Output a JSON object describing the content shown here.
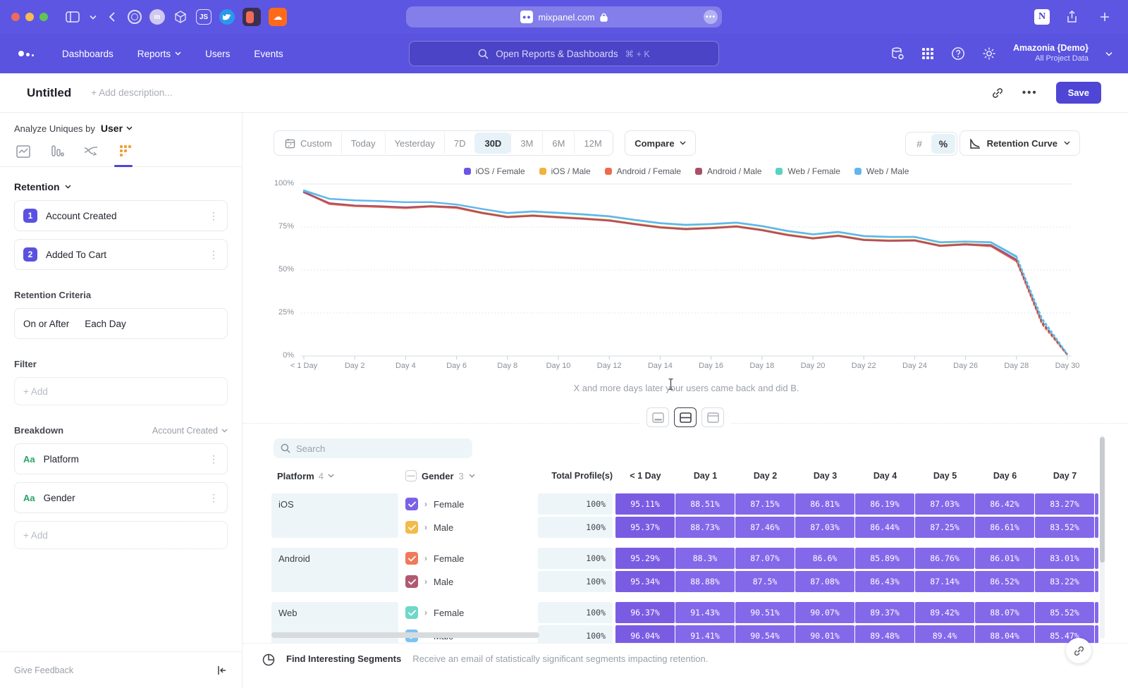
{
  "browser": {
    "url": "mixpanel.com"
  },
  "nav": {
    "items": [
      "Dashboards",
      "Reports",
      "Users",
      "Events"
    ],
    "search_placeholder": "Open Reports & Dashboards",
    "search_shortcut": "⌘ + K",
    "account_name": "Amazonia {Demo}",
    "account_scope": "All Project Data"
  },
  "header": {
    "title": "Untitled",
    "description_placeholder": "+ Add description...",
    "save_label": "Save"
  },
  "sidebar": {
    "analyze_label": "Analyze Uniques by",
    "analyze_value": "User",
    "section_retention": "Retention",
    "steps": [
      {
        "num": "1",
        "label": "Account Created"
      },
      {
        "num": "2",
        "label": "Added To Cart"
      }
    ],
    "criteria_label": "Retention Criteria",
    "criteria_value_1": "On or After",
    "criteria_value_2": "Each Day",
    "filter_label": "Filter",
    "add_label": "+ Add",
    "breakdown_label": "Breakdown",
    "breakdown_scope": "Account Created",
    "breakdowns": [
      {
        "type": "Aa",
        "label": "Platform"
      },
      {
        "type": "Aa",
        "label": "Gender"
      }
    ],
    "give_feedback": "Give Feedback"
  },
  "toolbar": {
    "ranges": [
      "Custom",
      "Today",
      "Yesterday",
      "7D",
      "30D",
      "3M",
      "6M",
      "12M"
    ],
    "active_range": "30D",
    "compare_label": "Compare",
    "unit_toggle": [
      "#",
      "%"
    ],
    "active_unit": "%",
    "chart_type": "Retention Curve"
  },
  "chart_data": {
    "type": "line",
    "x_labels": [
      "< 1 Day",
      "Day 2",
      "Day 4",
      "Day 6",
      "Day 8",
      "Day 10",
      "Day 12",
      "Day 14",
      "Day 16",
      "Day 18",
      "Day 20",
      "Day 22",
      "Day 24",
      "Day 26",
      "Day 28",
      "Day 30"
    ],
    "x_range": [
      0,
      30
    ],
    "ylim": [
      0,
      100
    ],
    "y_ticks": [
      "100%",
      "75%",
      "50%",
      "25%",
      "0%"
    ],
    "caption": "X and more days later your users came back and did B.",
    "dashed_from_day": 28,
    "legend_position": "top",
    "series": [
      {
        "name": "iOS / Female",
        "color": "#6c55e6",
        "values": [
          95.1,
          88.5,
          87.2,
          86.8,
          86.2,
          87.0,
          86.4,
          83.3,
          80.9,
          81.7,
          80.8,
          79.9,
          78.9,
          76.8,
          74.9,
          73.9,
          74.5,
          75.4,
          73.3,
          70.5,
          68.5,
          70.0,
          67.6,
          67.1,
          67.3,
          64.2,
          65.0,
          64.6,
          56.0,
          20.0,
          0.8
        ]
      },
      {
        "name": "iOS / Male",
        "color": "#f2b23e",
        "values": [
          95.4,
          88.7,
          87.5,
          87.0,
          86.4,
          87.3,
          86.6,
          83.5,
          81.1,
          81.9,
          81.0,
          80.1,
          79.1,
          77.0,
          75.1,
          74.1,
          74.7,
          75.6,
          73.5,
          70.7,
          68.7,
          70.2,
          67.8,
          67.3,
          67.5,
          64.4,
          65.2,
          64.4,
          55.5,
          19.0,
          0.6
        ]
      },
      {
        "name": "Android / Female",
        "color": "#ef6a4c",
        "values": [
          95.3,
          88.3,
          87.1,
          86.6,
          85.9,
          86.8,
          86.0,
          83.0,
          80.6,
          81.4,
          80.5,
          79.6,
          78.6,
          76.5,
          74.6,
          73.6,
          74.2,
          75.1,
          73.0,
          70.2,
          68.2,
          69.7,
          67.3,
          66.8,
          67.0,
          63.9,
          64.7,
          63.8,
          55.0,
          18.5,
          0.5
        ]
      },
      {
        "name": "Android / Male",
        "color": "#a94f68",
        "values": [
          95.3,
          88.9,
          87.5,
          87.1,
          86.4,
          87.1,
          86.5,
          83.2,
          80.8,
          81.6,
          80.7,
          79.8,
          78.8,
          76.7,
          74.8,
          73.8,
          74.4,
          75.3,
          73.2,
          70.4,
          68.4,
          69.9,
          67.5,
          67.0,
          67.2,
          64.1,
          64.9,
          64.2,
          55.8,
          19.5,
          0.7
        ]
      },
      {
        "name": "Web / Female",
        "color": "#58d2c3",
        "values": [
          96.4,
          91.4,
          90.5,
          90.1,
          89.4,
          89.4,
          88.1,
          85.5,
          83.0,
          83.9,
          83.1,
          82.2,
          81.1,
          79.0,
          77.1,
          76.1,
          76.6,
          77.4,
          75.4,
          72.6,
          70.6,
          72.0,
          69.6,
          69.1,
          69.1,
          66.0,
          66.4,
          66.0,
          57.5,
          21.0,
          1.0
        ]
      },
      {
        "name": "Web / Male",
        "color": "#63b5ef",
        "values": [
          96.0,
          91.4,
          90.5,
          90.0,
          89.4,
          89.5,
          88.0,
          85.5,
          83.2,
          84.1,
          83.3,
          82.4,
          81.3,
          79.2,
          77.3,
          76.3,
          76.8,
          77.6,
          75.6,
          72.8,
          70.8,
          72.2,
          69.8,
          69.3,
          69.3,
          66.2,
          66.6,
          66.2,
          58.0,
          22.0,
          1.2
        ]
      }
    ]
  },
  "table": {
    "search_placeholder": "Search",
    "columns": {
      "platform_label": "Platform",
      "platform_count": "4",
      "gender_label": "Gender",
      "gender_count": "3",
      "total_label": "Total Profile(s)",
      "day_headers": [
        "< 1 Day",
        "Day 1",
        "Day 2",
        "Day 3",
        "Day 4",
        "Day 5",
        "Day 6",
        "Day 7"
      ]
    },
    "groups": [
      {
        "platform": "iOS",
        "rows": [
          {
            "gender": "Female",
            "checkbox_color": "#7b61e8",
            "total": "100%",
            "values": [
              "95.11%",
              "88.51%",
              "87.15%",
              "86.81%",
              "86.19%",
              "87.03%",
              "86.42%",
              "83.27%"
            ]
          },
          {
            "gender": "Male",
            "checkbox_color": "#f3bb4a",
            "total": "100%",
            "values": [
              "95.37%",
              "88.73%",
              "87.46%",
              "87.03%",
              "86.44%",
              "87.25%",
              "86.61%",
              "83.52%"
            ]
          }
        ]
      },
      {
        "platform": "Android",
        "rows": [
          {
            "gender": "Female",
            "checkbox_color": "#f0795a",
            "total": "100%",
            "values": [
              "95.29%",
              "88.3%",
              "87.07%",
              "86.6%",
              "85.89%",
              "86.76%",
              "86.01%",
              "83.01%"
            ]
          },
          {
            "gender": "Male",
            "checkbox_color": "#b05a72",
            "total": "100%",
            "values": [
              "95.34%",
              "88.88%",
              "87.5%",
              "87.08%",
              "86.43%",
              "87.14%",
              "86.52%",
              "83.22%"
            ]
          }
        ]
      },
      {
        "platform": "Web",
        "rows": [
          {
            "gender": "Female",
            "checkbox_color": "#6fd8c8",
            "total": "100%",
            "values": [
              "96.37%",
              "91.43%",
              "90.51%",
              "90.07%",
              "89.37%",
              "89.42%",
              "88.07%",
              "85.52%"
            ]
          },
          {
            "gender": "Male",
            "checkbox_color": "#7cc3f2",
            "total": "100%",
            "values": [
              "96.04%",
              "91.41%",
              "90.54%",
              "90.01%",
              "89.48%",
              "89.4%",
              "88.04%",
              "85.47%"
            ]
          }
        ]
      }
    ]
  },
  "footer": {
    "segments_title": "Find Interesting Segments",
    "segments_desc": "Receive an email of statistically significant segments impacting retention."
  },
  "colors": {
    "chrome": "#5d56e2",
    "nav": "#5a53e0",
    "accent": "#4f46d6",
    "active_pill": "#e7f2f8",
    "cell_purple": "#8468ea",
    "cell_purple_dark": "#7a5ce3",
    "cell_blue": "#edf5f8"
  }
}
